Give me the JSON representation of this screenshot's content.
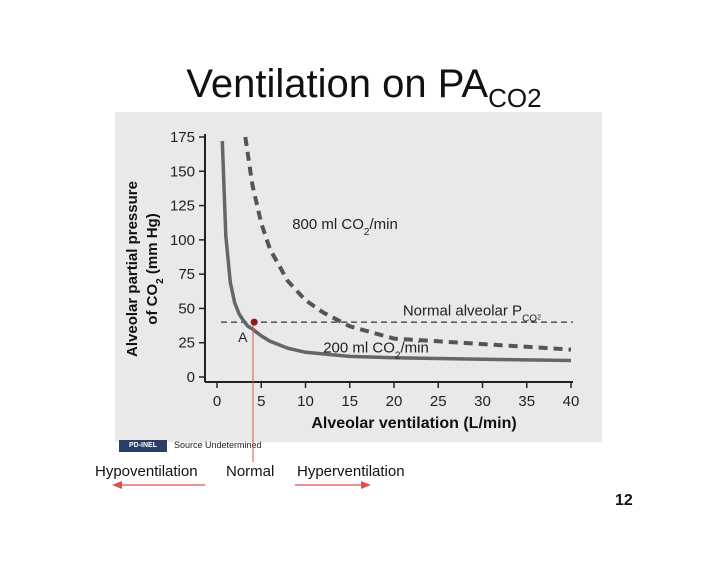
{
  "slide": {
    "title_main": "Ventilation on PA",
    "title_sub": "CO2",
    "source_badge": "PD-INEL",
    "source_text": "Source Undetermined",
    "hypo_label": "Hypoventilation",
    "normal_label": "Normal",
    "hyper_label": "Hyperventilation",
    "slide_number": "12"
  },
  "colors": {
    "arrow": "#e05050",
    "solid_curve": "#666666",
    "dashed_curve": "#555555",
    "point": "#8b1c1c",
    "figure_bg": "#e9e9e9"
  },
  "chart_data": {
    "type": "line",
    "xlabel": "Alveolar ventilation (L/min)",
    "ylabel_line1": "Alveolar partial pressure",
    "ylabel_line2": "of CO2 (mm Hg)",
    "xlim": [
      0,
      40
    ],
    "ylim": [
      0,
      175
    ],
    "xticks": [
      0,
      5,
      10,
      15,
      20,
      25,
      30,
      35,
      40
    ],
    "yticks": [
      0,
      25,
      50,
      75,
      100,
      125,
      150,
      175
    ],
    "grid": false,
    "series": [
      {
        "name": "200 ml CO2/min",
        "style": "solid",
        "x": [
          0.6,
          1,
          1.5,
          2,
          2.5,
          3,
          3.5,
          4,
          5,
          6,
          8,
          10,
          15,
          20,
          25,
          30,
          35,
          40
        ],
        "y": [
          172,
          103,
          69,
          54,
          46,
          41,
          37,
          35,
          30,
          26,
          21,
          18,
          15,
          14,
          13.5,
          13,
          12.5,
          12
        ]
      },
      {
        "name": "800 ml CO2/min",
        "style": "dashed",
        "x": [
          3.2,
          4,
          5,
          6,
          8,
          10,
          12,
          15,
          20,
          25,
          30,
          35,
          40
        ],
        "y": [
          175,
          140,
          112,
          93,
          70,
          56,
          47,
          37,
          28,
          26,
          24,
          22,
          20
        ]
      }
    ],
    "reference_line": {
      "label": "Normal alveolar Pco2",
      "y": 40
    },
    "point": {
      "label": "A",
      "x": 4.2,
      "y": 40
    }
  }
}
